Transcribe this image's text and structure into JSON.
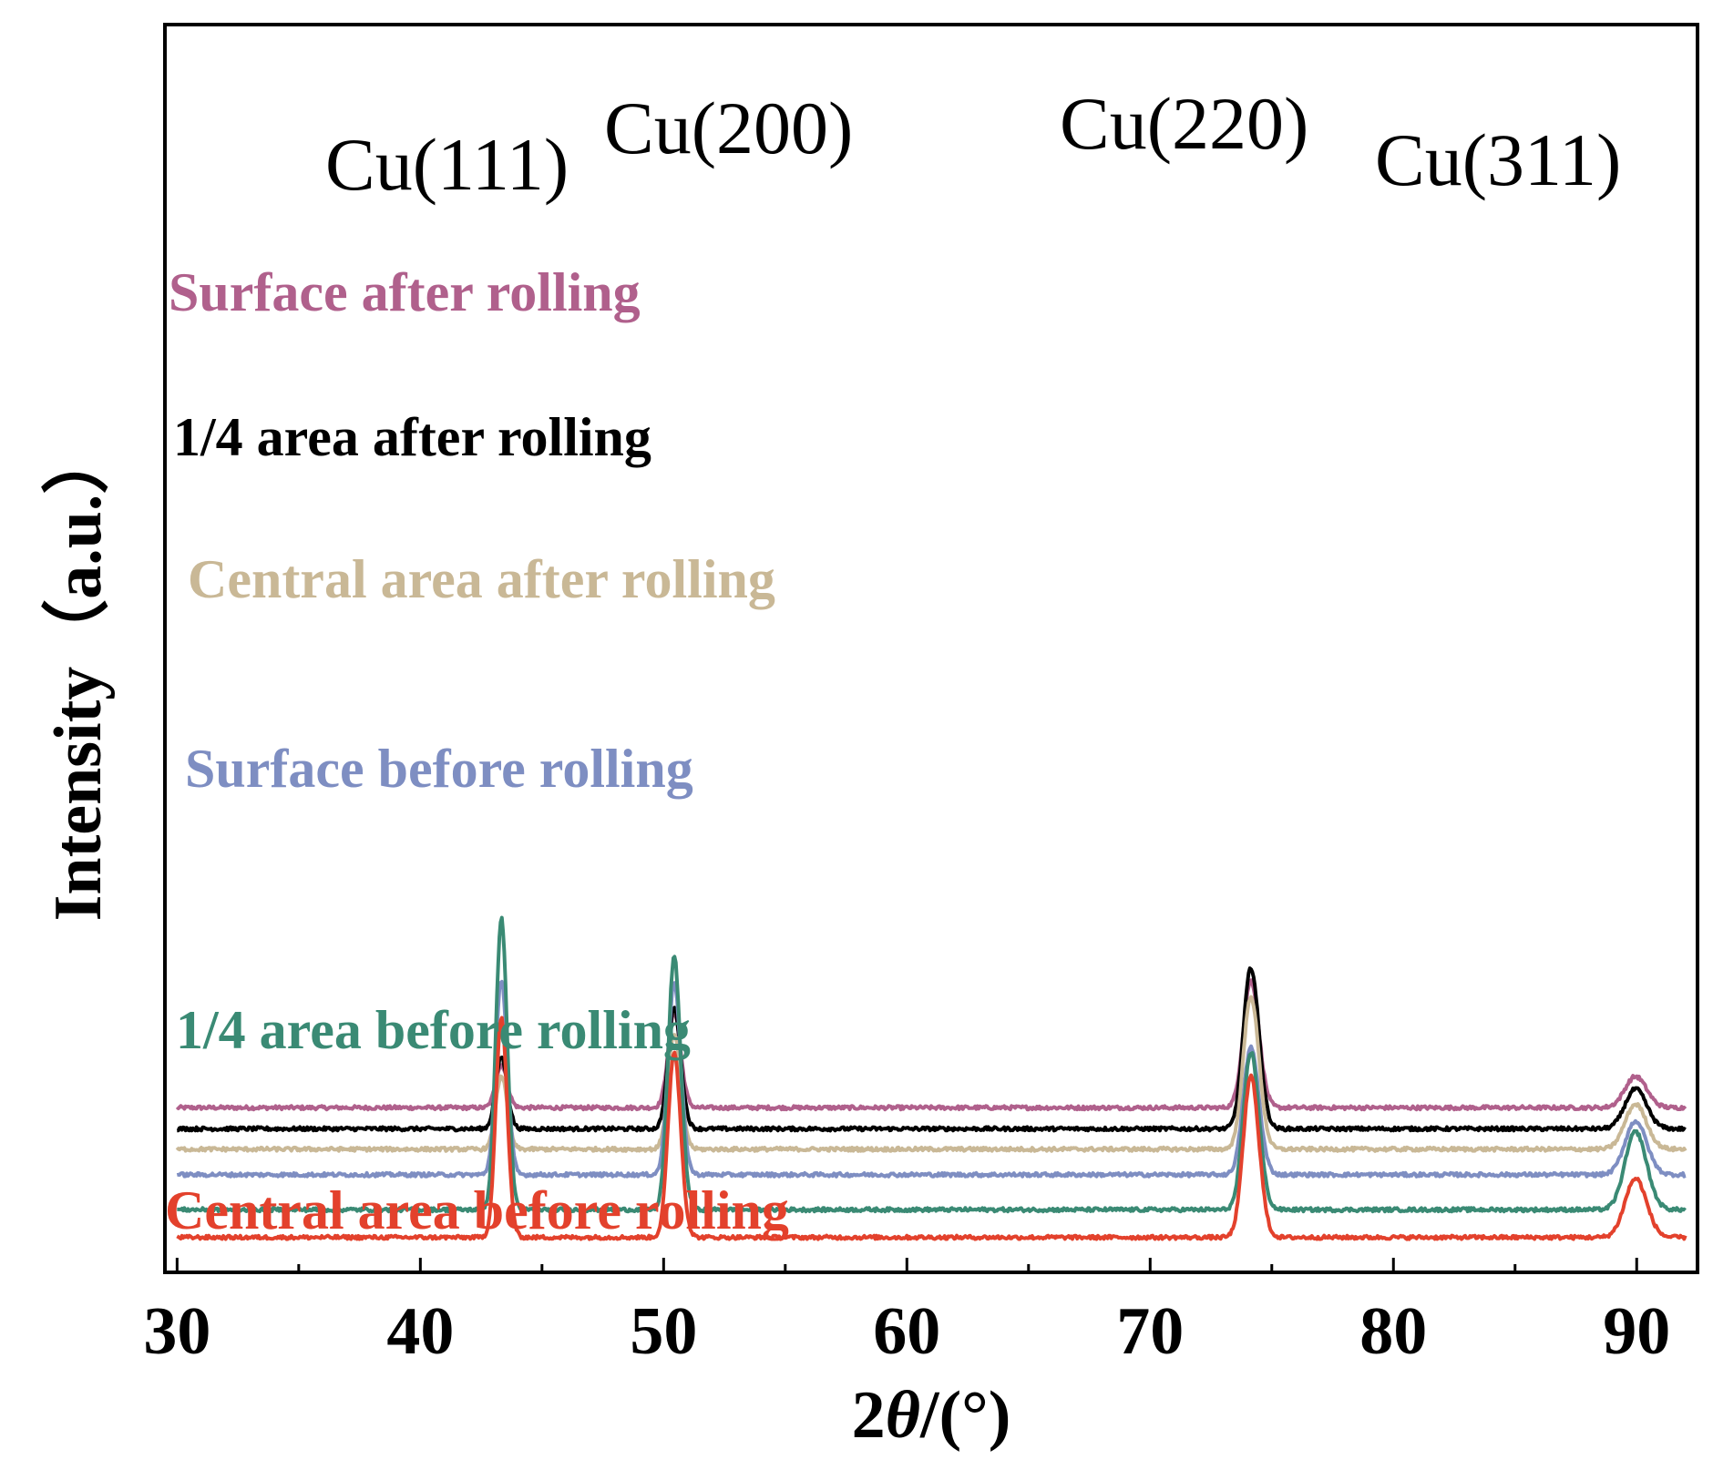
{
  "chart_data": {
    "type": "line",
    "title": "",
    "xlabel": "2θ/(°)",
    "xlabel_prefix": "2",
    "xlabel_theta": "θ",
    "xlabel_suffix": "/(°)",
    "ylabel": "Intensity（a.u.）",
    "xlim": [
      29.5,
      92.5
    ],
    "x_ticks": [
      30,
      40,
      50,
      60,
      70,
      80,
      90
    ],
    "x_tick_labels": [
      "30",
      "40",
      "50",
      "60",
      "70",
      "80",
      "90"
    ],
    "y_ticks": [],
    "grid": false,
    "peaks": [
      {
        "label": "Cu(111)",
        "two_theta": 43.3
      },
      {
        "label": "Cu(200)",
        "two_theta": 50.4
      },
      {
        "label": "Cu(220)",
        "two_theta": 74.1
      },
      {
        "label": "Cu(311)",
        "two_theta": 89.9
      }
    ],
    "series": [
      {
        "name": "Surface after rolling",
        "color": "#b0608c",
        "baseline": 0.83,
        "peak_heights": [
          0.25,
          0.56,
          0.75,
          0.18
        ]
      },
      {
        "name": "1/4 area after rolling",
        "color": "#000000",
        "baseline": 0.685,
        "peak_heights": [
          0.42,
          0.72,
          0.95,
          0.23
        ]
      },
      {
        "name": "Central area after rolling",
        "color": "#c9b896",
        "baseline": 0.545,
        "peak_heights": [
          0.43,
          0.68,
          0.9,
          0.26
        ]
      },
      {
        "name": "Surface before rolling",
        "color": "#7e8ec2",
        "baseline": 0.37,
        "peak_heights": [
          1.14,
          1.14,
          0.75,
          0.31
        ]
      },
      {
        "name": "1/4 area before rolling",
        "color": "#3a8a74",
        "baseline": 0.13,
        "peak_heights": [
          1.7,
          1.5,
          0.93,
          0.45
        ]
      },
      {
        "name": "Central area before rolling",
        "color": "#e3412c",
        "baseline": -0.06,
        "peak_heights": [
          1.28,
          1.1,
          0.95,
          0.34
        ]
      }
    ]
  }
}
